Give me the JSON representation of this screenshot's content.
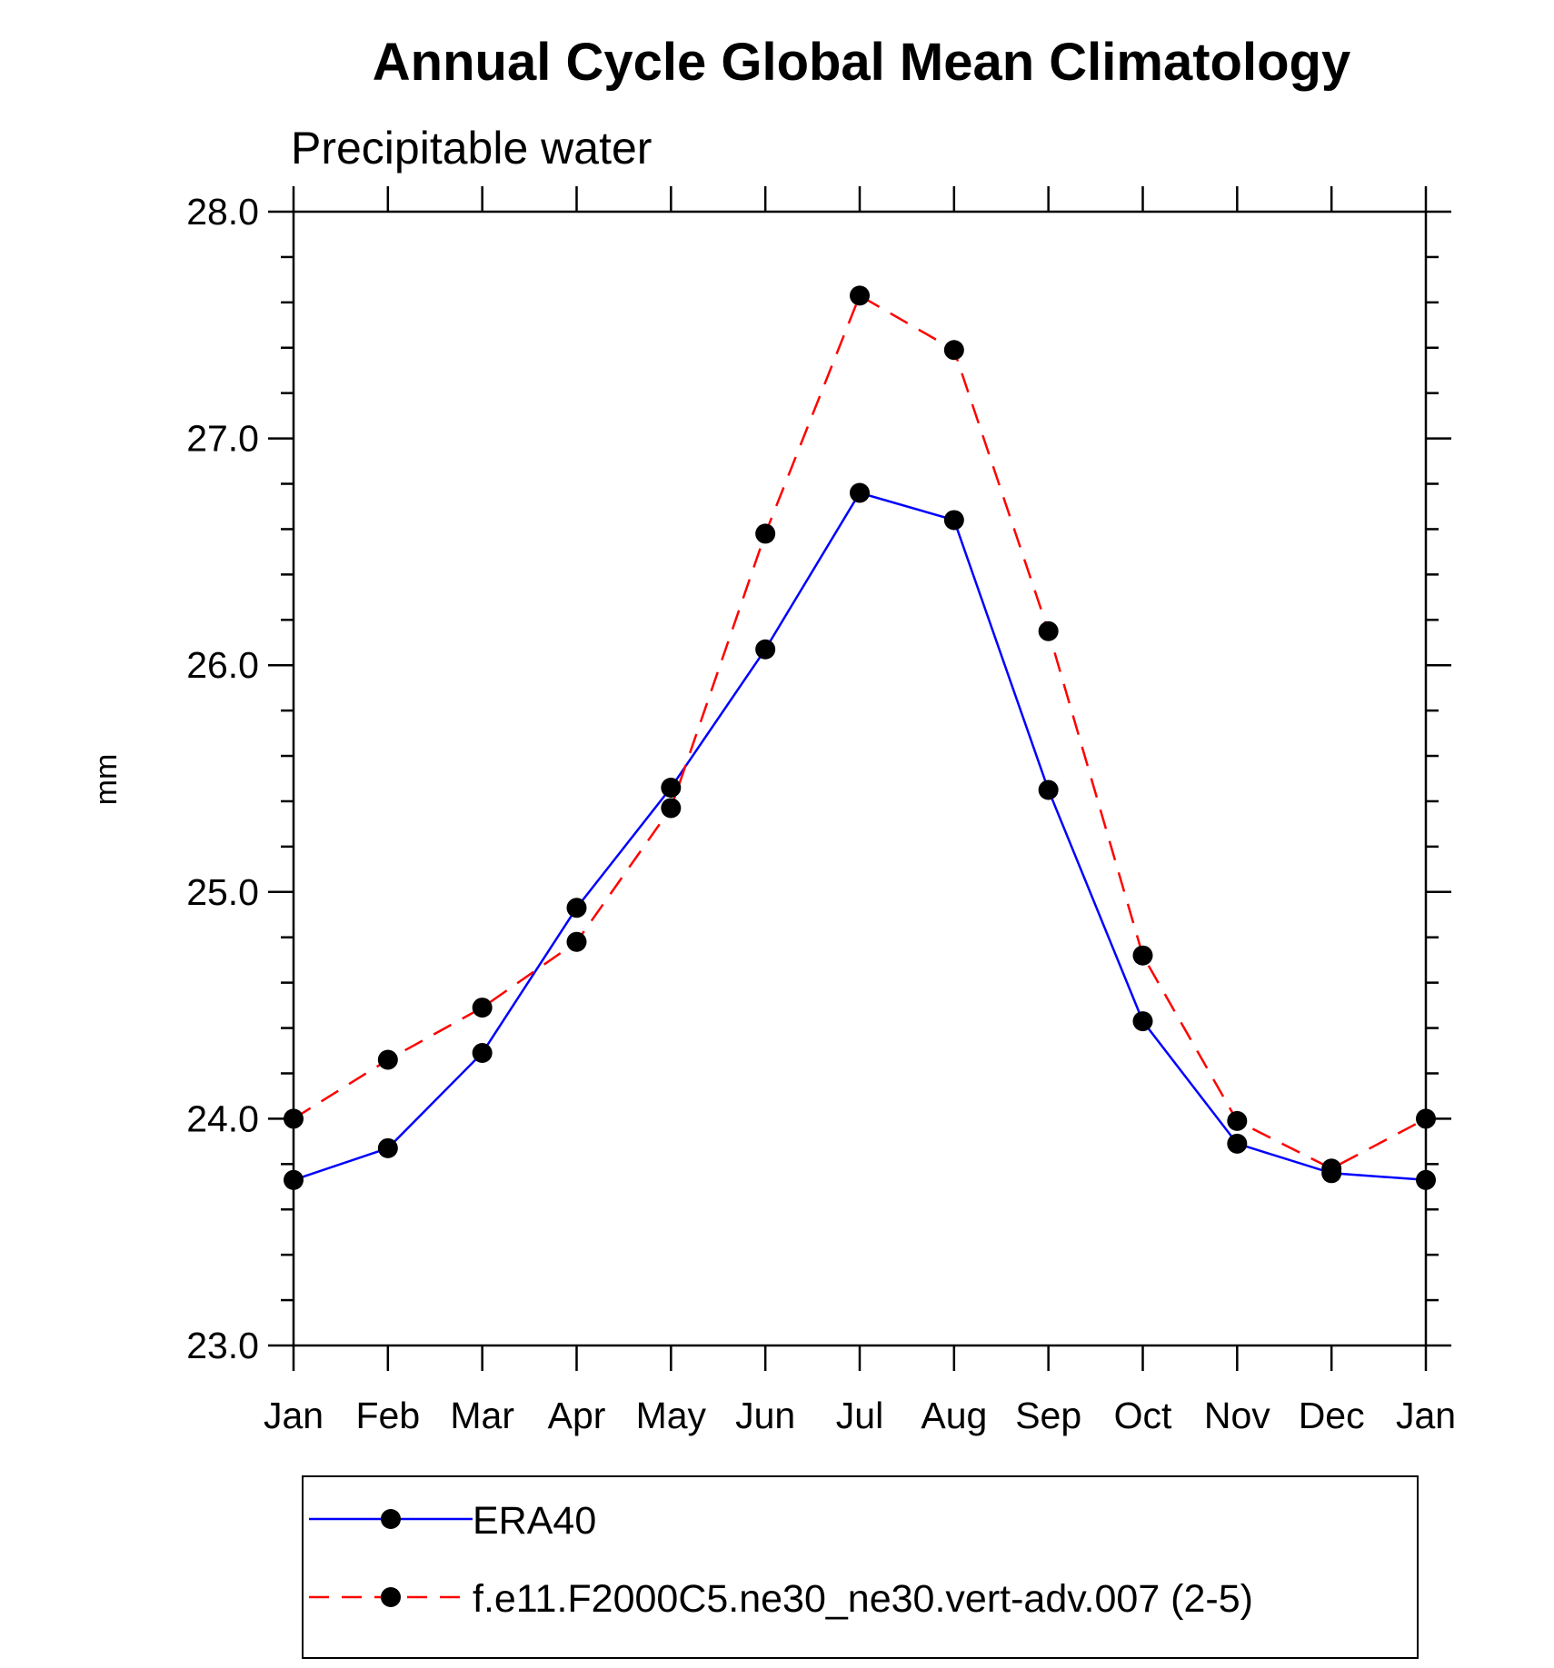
{
  "chart_data": {
    "type": "line",
    "title": "Annual Cycle Global Mean Climatology",
    "subtitle": "Precipitable water",
    "xlabel": "",
    "ylabel": "mm",
    "categories": [
      "Jan",
      "Feb",
      "Mar",
      "Apr",
      "May",
      "Jun",
      "Jul",
      "Aug",
      "Sep",
      "Oct",
      "Nov",
      "Dec",
      "Jan"
    ],
    "ylim": [
      23.0,
      28.0
    ],
    "yticks": [
      23.0,
      24.0,
      25.0,
      26.0,
      27.0,
      28.0
    ],
    "ytick_labels": [
      "23.0",
      "24.0",
      "25.0",
      "26.0",
      "27.0",
      "28.0"
    ],
    "y_minor_step": 0.2,
    "grid": false,
    "legend_position": "bottom",
    "series": [
      {
        "name": "ERA40",
        "color": "#0000ff",
        "dash": "solid",
        "marker_color": "#000000",
        "values": [
          23.73,
          23.87,
          24.29,
          24.93,
          25.46,
          26.07,
          26.76,
          26.64,
          25.45,
          24.43,
          23.89,
          23.76,
          23.73
        ]
      },
      {
        "name": "f.e11.F2000C5.ne30_ne30.vert-adv.007 (2-5)",
        "color": "#ff0000",
        "dash": "dashed",
        "marker_color": "#000000",
        "values": [
          24.0,
          24.26,
          24.49,
          24.78,
          25.37,
          26.58,
          27.63,
          27.39,
          26.15,
          24.72,
          23.99,
          23.78,
          24.0
        ]
      }
    ]
  }
}
